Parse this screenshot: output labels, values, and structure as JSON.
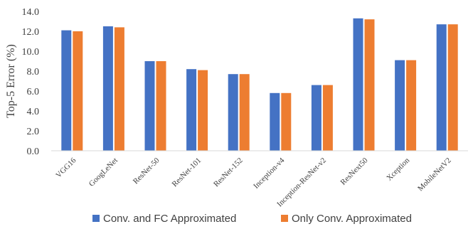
{
  "chart_data": {
    "type": "bar",
    "title": "",
    "xlabel": "",
    "ylabel": "Top-5 Error (%)",
    "ylim": [
      0,
      14
    ],
    "yticks": [
      "0.0",
      "2.0",
      "4.0",
      "6.0",
      "8.0",
      "10.0",
      "12.0",
      "14.0"
    ],
    "grid": false,
    "legend_position": "bottom",
    "categories": [
      "VGG16",
      "GoogLeNet",
      "ResNet-50",
      "ResNet-101",
      "ResNet-152",
      "Inception-v4",
      "Inception-ResNet-v2",
      "ResNext50",
      "Xception",
      "MobileNetV2"
    ],
    "series": [
      {
        "name": "Conv. and FC Approximated",
        "color": "#4472C4",
        "values": [
          12.1,
          12.5,
          9.0,
          8.2,
          7.7,
          5.8,
          6.6,
          13.3,
          9.1,
          12.7
        ]
      },
      {
        "name": "Only Conv. Approximated",
        "color": "#ED7D31",
        "values": [
          12.0,
          12.4,
          9.0,
          8.1,
          7.7,
          5.8,
          6.6,
          13.2,
          9.1,
          12.7
        ]
      }
    ]
  }
}
